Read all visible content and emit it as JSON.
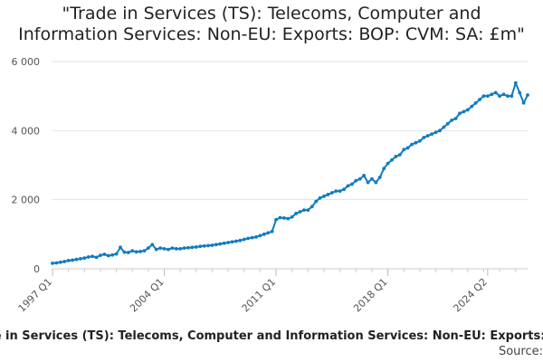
{
  "chart_data": {
    "type": "line",
    "title_line1": "\"Trade in Services (TS): Telecoms, Computer and",
    "title_line2": "Information Services: Non-EU: Exports: BOP: CVM: SA: £m\"",
    "xlabel": "",
    "ylabel": "",
    "ylim": [
      0,
      6000
    ],
    "y_ticks": [
      {
        "value": 0,
        "label": "0"
      },
      {
        "value": 2000,
        "label": "2 000"
      },
      {
        "value": 4000,
        "label": "4 000"
      },
      {
        "value": 6000,
        "label": "6 000"
      }
    ],
    "x_tick_labels": [
      "1997 Q1",
      "2004 Q1",
      "2011 Q1",
      "2018 Q1",
      "2024 Q2"
    ],
    "x_tick_indices": [
      0,
      28,
      56,
      84,
      109
    ],
    "grid": "horizontal",
    "color": "#0f7cbf",
    "series": [
      {
        "values": [
          160,
          170,
          190,
          210,
          240,
          250,
          270,
          290,
          310,
          340,
          360,
          330,
          390,
          420,
          380,
          400,
          430,
          620,
          480,
          470,
          520,
          490,
          500,
          520,
          600,
          700,
          560,
          600,
          580,
          560,
          600,
          580,
          580,
          600,
          610,
          620,
          630,
          650,
          660,
          670,
          680,
          700,
          720,
          740,
          760,
          780,
          800,
          820,
          850,
          880,
          900,
          920,
          960,
          1000,
          1040,
          1080,
          1420,
          1480,
          1470,
          1450,
          1500,
          1600,
          1650,
          1700,
          1700,
          1800,
          1950,
          2050,
          2100,
          2150,
          2200,
          2250,
          2250,
          2300,
          2400,
          2450,
          2550,
          2600,
          2700,
          2500,
          2600,
          2500,
          2650,
          2900,
          3050,
          3150,
          3250,
          3300,
          3450,
          3500,
          3600,
          3650,
          3700,
          3800,
          3850,
          3900,
          3950,
          4000,
          4100,
          4200,
          4300,
          4350,
          4500,
          4550,
          4600,
          4700,
          4800,
          4900,
          5000,
          5000,
          5050,
          5100,
          5000,
          5050,
          5000,
          5000,
          5380,
          5100,
          4800,
          5030
        ]
      }
    ]
  },
  "footer": {
    "series_label": "\"Trade in Services (TS): Telecoms, Computer and Information Services: Non-EU: Exports: BOP: CVM: SA: £m\"",
    "source_label": "Source: "
  }
}
